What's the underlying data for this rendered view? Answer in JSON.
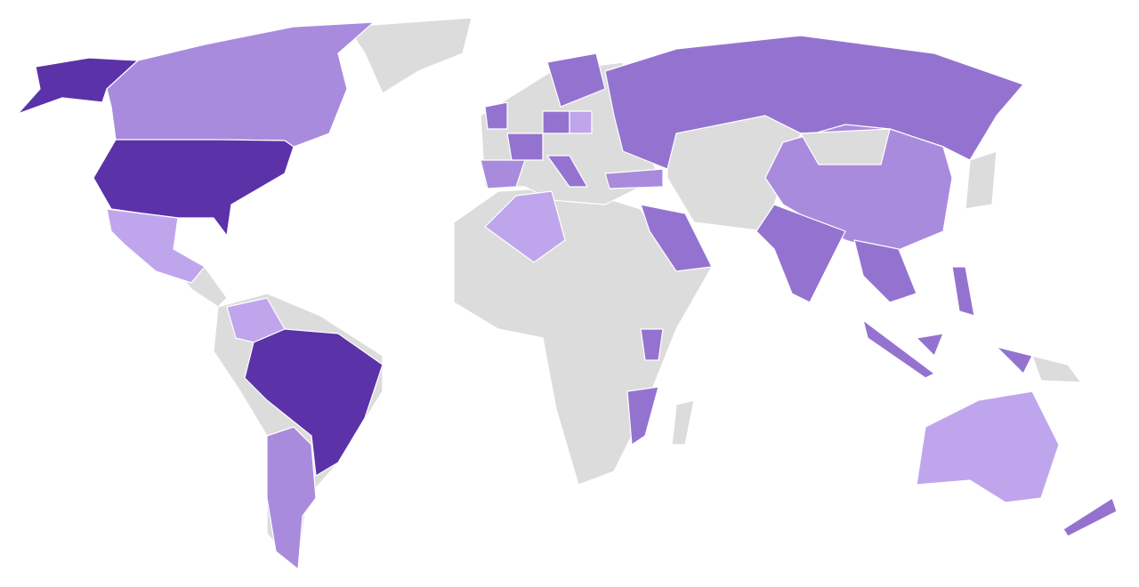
{
  "palette": [
    "#5b32a8",
    "#9473d0",
    "#a98bdd",
    "#bfa6ec",
    "#dcdcdc"
  ]
}
